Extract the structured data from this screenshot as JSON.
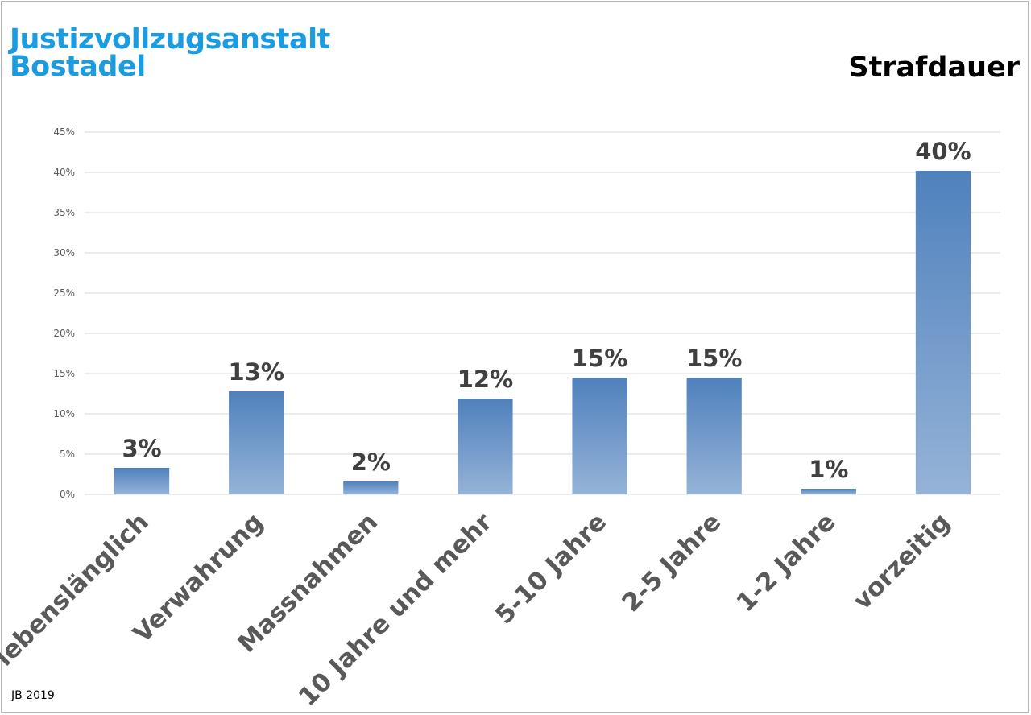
{
  "header": {
    "org_line1": "Justizvollzugsanstalt",
    "org_line2": "Bostadel",
    "chart_title": "Strafdauer"
  },
  "footer": {
    "note": "JB 2019"
  },
  "colors": {
    "org_title": "#1b9be0",
    "bar_top": "#4f81bd",
    "bar_bottom": "#95b3d7",
    "grid": "#d9d9d9",
    "data_label": "#404040",
    "axis_label": "#595959"
  },
  "chart_data": {
    "type": "bar",
    "title": "Strafdauer",
    "categories": [
      "lebenslänglich",
      "Verwahrung",
      "Massnahmen",
      "10 Jahre und mehr",
      "5-10 Jahre",
      "2-5 Jahre",
      "1-2 Jahre",
      "vorzeitig"
    ],
    "values": [
      3.3,
      12.8,
      1.6,
      11.9,
      14.5,
      14.5,
      0.7,
      40.2
    ],
    "data_labels": [
      "3%",
      "13%",
      "2%",
      "12%",
      "15%",
      "15%",
      "1%",
      "40%"
    ],
    "y_ticks": [
      "0%",
      "5%",
      "10%",
      "15%",
      "20%",
      "25%",
      "30%",
      "35%",
      "40%",
      "45%"
    ],
    "ylim": [
      0,
      45
    ],
    "grid": true,
    "legend": "none",
    "xlabel": "",
    "ylabel": ""
  }
}
